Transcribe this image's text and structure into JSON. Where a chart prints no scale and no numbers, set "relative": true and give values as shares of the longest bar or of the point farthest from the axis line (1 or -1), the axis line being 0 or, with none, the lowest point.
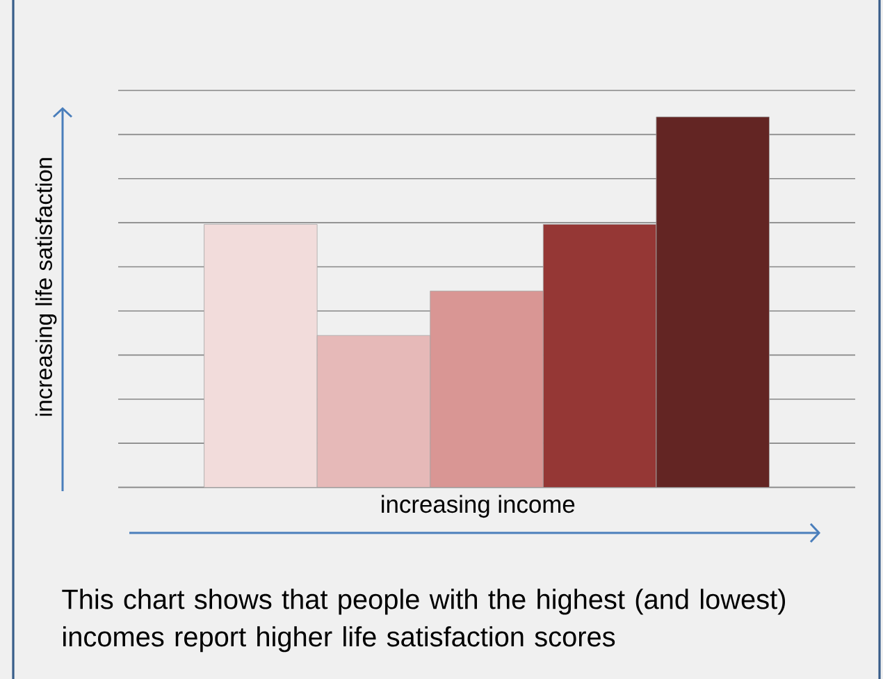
{
  "chart_data": {
    "type": "bar",
    "relative": true,
    "categories": [
      null,
      null,
      null,
      null,
      null
    ],
    "values": [
      0.71,
      0.41,
      0.53,
      0.71,
      1
    ],
    "colors": [
      "#f2dcdb",
      "#e6b9b8",
      "#d99694",
      "#953735",
      "#632523"
    ],
    "xlabel": "increasing income",
    "ylabel": "increasing life satisfaction",
    "annotations": [
      "This chart shows that people with the highest (and lowest) incomes report higher life satisfaction scores"
    ],
    "grid": "y"
  }
}
